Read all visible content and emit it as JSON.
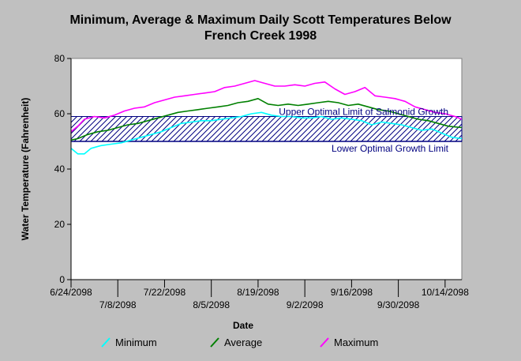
{
  "chart_data": {
    "type": "line",
    "title": "Minimum, Average & Maximum Daily Scott Temperatures Below",
    "subtitle": "French Creek 1998",
    "xlabel": "Date",
    "ylabel": "Water Temperature (Fahrenheit)",
    "ylim": [
      0,
      80
    ],
    "yticks": [
      0,
      20,
      40,
      60,
      80
    ],
    "xrange": [
      "2098-06-24",
      "2098-10-19"
    ],
    "xticks": [
      {
        "date": "2098-06-24",
        "label": "6/24/2098",
        "row": 1
      },
      {
        "date": "2098-07-08",
        "label": "7/8/2098",
        "row": 2
      },
      {
        "date": "2098-07-22",
        "label": "7/22/2098",
        "row": 1
      },
      {
        "date": "2098-08-05",
        "label": "8/5/2098",
        "row": 2
      },
      {
        "date": "2098-08-19",
        "label": "8/19/2098",
        "row": 1
      },
      {
        "date": "2098-09-02",
        "label": "9/2/2098",
        "row": 2
      },
      {
        "date": "2098-09-16",
        "label": "9/16/2098",
        "row": 1
      },
      {
        "date": "2098-09-30",
        "label": "9/30/2098",
        "row": 2
      },
      {
        "date": "2098-10-14",
        "label": "10/14/2098",
        "row": 1
      }
    ],
    "grid": false,
    "legend_position": "bottom",
    "optimal_band": {
      "lower": 50,
      "upper": 59,
      "upper_label": "Upper Optimal Limit of Salmonid Growth",
      "lower_label": "Lower Optimal Growth Limit",
      "color": "#000080"
    },
    "series": [
      {
        "name": "Minimum",
        "color": "#00ffff",
        "points": [
          [
            "2098-06-24",
            47.5
          ],
          [
            "2098-06-26",
            45.5
          ],
          [
            "2098-06-28",
            45.5
          ],
          [
            "2098-06-30",
            47.5
          ],
          [
            "2098-07-03",
            48.5
          ],
          [
            "2098-07-06",
            49
          ],
          [
            "2098-07-09",
            49.5
          ],
          [
            "2098-07-12",
            50.5
          ],
          [
            "2098-07-15",
            51.5
          ],
          [
            "2098-07-18",
            52.5
          ],
          [
            "2098-07-21",
            53.5
          ],
          [
            "2098-07-24",
            55
          ],
          [
            "2098-07-27",
            56.5
          ],
          [
            "2098-07-30",
            57
          ],
          [
            "2098-08-02",
            57.5
          ],
          [
            "2098-08-05",
            57.5
          ],
          [
            "2098-08-08",
            58
          ],
          [
            "2098-08-11",
            58.5
          ],
          [
            "2098-08-14",
            59
          ],
          [
            "2098-08-17",
            60
          ],
          [
            "2098-08-20",
            60.5
          ],
          [
            "2098-08-23",
            59.5
          ],
          [
            "2098-08-26",
            59
          ],
          [
            "2098-08-29",
            59
          ],
          [
            "2098-09-01",
            58.5
          ],
          [
            "2098-09-04",
            58.5
          ],
          [
            "2098-09-07",
            59
          ],
          [
            "2098-09-10",
            58
          ],
          [
            "2098-09-13",
            58.5
          ],
          [
            "2098-09-16",
            58
          ],
          [
            "2098-09-19",
            57.5
          ],
          [
            "2098-09-22",
            56
          ],
          [
            "2098-09-25",
            57
          ],
          [
            "2098-09-28",
            56.5
          ],
          [
            "2098-10-01",
            56
          ],
          [
            "2098-10-04",
            55
          ],
          [
            "2098-10-07",
            54
          ],
          [
            "2098-10-10",
            54.5
          ],
          [
            "2098-10-13",
            53
          ],
          [
            "2098-10-16",
            51.5
          ],
          [
            "2098-10-19",
            51
          ]
        ]
      },
      {
        "name": "Average",
        "color": "#008000",
        "points": [
          [
            "2098-06-24",
            50.5
          ],
          [
            "2098-06-26",
            51
          ],
          [
            "2098-06-29",
            52.5
          ],
          [
            "2098-07-02",
            53.5
          ],
          [
            "2098-07-05",
            54
          ],
          [
            "2098-07-08",
            55
          ],
          [
            "2098-07-11",
            56
          ],
          [
            "2098-07-14",
            56.5
          ],
          [
            "2098-07-17",
            57.5
          ],
          [
            "2098-07-20",
            58.5
          ],
          [
            "2098-07-23",
            59.5
          ],
          [
            "2098-07-26",
            60.5
          ],
          [
            "2098-07-29",
            61
          ],
          [
            "2098-08-01",
            61.5
          ],
          [
            "2098-08-04",
            62
          ],
          [
            "2098-08-07",
            62.5
          ],
          [
            "2098-08-10",
            63
          ],
          [
            "2098-08-13",
            64
          ],
          [
            "2098-08-16",
            64.5
          ],
          [
            "2098-08-19",
            65.5
          ],
          [
            "2098-08-22",
            63.5
          ],
          [
            "2098-08-25",
            63
          ],
          [
            "2098-08-28",
            63.5
          ],
          [
            "2098-08-31",
            63
          ],
          [
            "2098-09-03",
            63.5
          ],
          [
            "2098-09-06",
            64
          ],
          [
            "2098-09-09",
            64.5
          ],
          [
            "2098-09-12",
            64
          ],
          [
            "2098-09-15",
            63
          ],
          [
            "2098-09-18",
            63.5
          ],
          [
            "2098-09-21",
            62.5
          ],
          [
            "2098-09-24",
            61.5
          ],
          [
            "2098-09-27",
            61
          ],
          [
            "2098-09-30",
            60
          ],
          [
            "2098-10-03",
            59
          ],
          [
            "2098-10-06",
            58
          ],
          [
            "2098-10-09",
            57.5
          ],
          [
            "2098-10-12",
            56.5
          ],
          [
            "2098-10-15",
            55.5
          ],
          [
            "2098-10-19",
            55
          ]
        ]
      },
      {
        "name": "Maximum",
        "color": "#ff00ff",
        "points": [
          [
            "2098-06-24",
            53.5
          ],
          [
            "2098-06-26",
            55.5
          ],
          [
            "2098-06-28",
            58
          ],
          [
            "2098-07-01",
            59
          ],
          [
            "2098-07-04",
            58.5
          ],
          [
            "2098-07-07",
            59.5
          ],
          [
            "2098-07-10",
            61
          ],
          [
            "2098-07-13",
            62
          ],
          [
            "2098-07-16",
            62.5
          ],
          [
            "2098-07-19",
            64
          ],
          [
            "2098-07-22",
            65
          ],
          [
            "2098-07-25",
            66
          ],
          [
            "2098-07-28",
            66.5
          ],
          [
            "2098-07-31",
            67
          ],
          [
            "2098-08-03",
            67.5
          ],
          [
            "2098-08-06",
            68
          ],
          [
            "2098-08-09",
            69.5
          ],
          [
            "2098-08-12",
            70
          ],
          [
            "2098-08-15",
            71
          ],
          [
            "2098-08-18",
            72
          ],
          [
            "2098-08-21",
            71
          ],
          [
            "2098-08-24",
            70
          ],
          [
            "2098-08-27",
            70
          ],
          [
            "2098-08-30",
            70.5
          ],
          [
            "2098-09-02",
            70
          ],
          [
            "2098-09-05",
            71
          ],
          [
            "2098-09-08",
            71.5
          ],
          [
            "2098-09-11",
            69
          ],
          [
            "2098-09-14",
            67
          ],
          [
            "2098-09-17",
            68
          ],
          [
            "2098-09-20",
            69.5
          ],
          [
            "2098-09-23",
            66.5
          ],
          [
            "2098-09-26",
            66
          ],
          [
            "2098-09-29",
            65.5
          ],
          [
            "2098-10-02",
            64.5
          ],
          [
            "2098-10-05",
            62.5
          ],
          [
            "2098-10-08",
            61.5
          ],
          [
            "2098-10-11",
            60.5
          ],
          [
            "2098-10-14",
            60
          ],
          [
            "2098-10-17",
            59
          ],
          [
            "2098-10-19",
            58
          ]
        ]
      }
    ]
  }
}
